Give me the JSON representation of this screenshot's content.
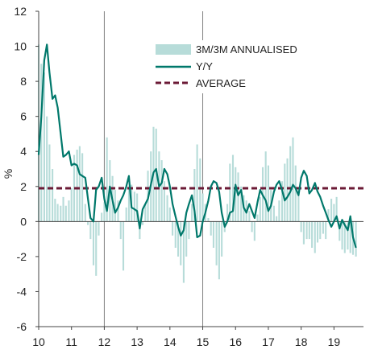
{
  "chart_data": {
    "type": "bar",
    "xlabel": "",
    "ylabel": "%",
    "xlim": [
      2010.0,
      2019.9
    ],
    "ylim": [
      -6,
      12
    ],
    "y_ticks": [
      -6,
      -4,
      -2,
      0,
      2,
      4,
      6,
      8,
      10,
      12
    ],
    "y_tick_labels": [
      "-6",
      "-4",
      "-2",
      "0",
      "2",
      "4",
      "6",
      "8",
      "10",
      "12"
    ],
    "x_ticks": [
      2010,
      2011,
      2012,
      2013,
      2014,
      2015,
      2016,
      2017,
      2018,
      2019
    ],
    "x_tick_labels": [
      "10",
      "11",
      "12",
      "13",
      "14",
      "15",
      "16",
      "17",
      "18",
      "19"
    ],
    "vertical_separators": [
      2012,
      2015
    ],
    "grid": false,
    "legend_position": "top-right",
    "legend": [
      "3M/3M ANNUALISED",
      "Y/Y",
      "AVERAGE"
    ],
    "colors": {
      "bars": "#b7dcd9",
      "line": "#00786b",
      "average": "#6b1a36",
      "axis": "#444444",
      "separator": "#808080"
    },
    "series": [
      {
        "name": "3M/3M ANNUALISED",
        "type": "bar",
        "x": [
          2010.0,
          2010.08,
          2010.17,
          2010.25,
          2010.33,
          2010.42,
          2010.5,
          2010.58,
          2010.67,
          2010.75,
          2010.83,
          2010.92,
          2011.0,
          2011.08,
          2011.17,
          2011.25,
          2011.33,
          2011.42,
          2011.5,
          2011.58,
          2011.67,
          2011.75,
          2011.83,
          2011.92,
          2012.0,
          2012.08,
          2012.17,
          2012.25,
          2012.33,
          2012.42,
          2012.5,
          2012.58,
          2012.67,
          2012.75,
          2012.83,
          2012.92,
          2013.0,
          2013.08,
          2013.17,
          2013.25,
          2013.33,
          2013.42,
          2013.5,
          2013.58,
          2013.67,
          2013.75,
          2013.83,
          2013.92,
          2014.0,
          2014.08,
          2014.17,
          2014.25,
          2014.33,
          2014.42,
          2014.5,
          2014.58,
          2014.67,
          2014.75,
          2014.83,
          2014.92,
          2015.0,
          2015.08,
          2015.17,
          2015.25,
          2015.33,
          2015.42,
          2015.5,
          2015.58,
          2015.67,
          2015.75,
          2015.83,
          2015.92,
          2016.0,
          2016.08,
          2016.17,
          2016.25,
          2016.33,
          2016.42,
          2016.5,
          2016.58,
          2016.67,
          2016.75,
          2016.83,
          2016.92,
          2017.0,
          2017.08,
          2017.17,
          2017.25,
          2017.33,
          2017.42,
          2017.5,
          2017.58,
          2017.67,
          2017.75,
          2017.83,
          2017.92,
          2018.0,
          2018.08,
          2018.17,
          2018.25,
          2018.33,
          2018.42,
          2018.5,
          2018.58,
          2018.67,
          2018.75,
          2018.83,
          2018.92,
          2019.0,
          2019.08,
          2019.17,
          2019.25,
          2019.33,
          2019.42,
          2019.5,
          2019.58,
          2019.67
        ],
        "values": [
          10.1,
          9.0,
          8.5,
          6.0,
          4.4,
          3.0,
          1.3,
          1.0,
          0.9,
          1.4,
          0.9,
          1.2,
          1.9,
          3.8,
          4.1,
          4.3,
          3.9,
          1.0,
          -0.2,
          -1.0,
          -2.5,
          -3.1,
          -0.8,
          0.5,
          1.1,
          4.8,
          3.5,
          2.6,
          1.8,
          1.2,
          -1.0,
          -2.8,
          0.8,
          2.0,
          2.1,
          1.7,
          1.6,
          -1.0,
          -0.2,
          1.0,
          2.9,
          4.0,
          5.4,
          5.3,
          4.0,
          3.5,
          2.3,
          1.5,
          0.8,
          -0.8,
          -1.5,
          -2.0,
          -2.5,
          -3.5,
          -2.0,
          -1.0,
          1.0,
          3.0,
          4.4,
          3.6,
          1.6,
          1.0,
          0.2,
          -0.8,
          -1.5,
          -2.5,
          -3.3,
          -2.0,
          -0.6,
          1.0,
          3.3,
          3.8,
          3.1,
          2.8,
          2.0,
          1.5,
          1.2,
          0.6,
          -0.6,
          -1.1,
          0.4,
          1.4,
          3.1,
          4.0,
          3.2,
          1.8,
          0.9,
          0.3,
          1.2,
          2.3,
          3.3,
          3.6,
          4.3,
          4.8,
          3.2,
          1.8,
          -0.6,
          -1.3,
          -1.0,
          -1.0,
          -1.5,
          -1.8,
          -1.2,
          -1.0,
          -0.7,
          -1.0,
          0.7,
          1.3,
          1.0,
          1.4,
          -1.1,
          -1.6,
          -1.8,
          -1.6,
          -1.8,
          -1.9,
          -2.0
        ]
      },
      {
        "name": "Y/Y",
        "type": "line",
        "x": [
          2010.0,
          2010.08,
          2010.17,
          2010.25,
          2010.33,
          2010.42,
          2010.5,
          2010.58,
          2010.67,
          2010.75,
          2010.83,
          2010.92,
          2011.0,
          2011.08,
          2011.17,
          2011.25,
          2011.33,
          2011.42,
          2011.5,
          2011.58,
          2011.67,
          2011.75,
          2011.83,
          2011.92,
          2012.0,
          2012.08,
          2012.17,
          2012.25,
          2012.33,
          2012.42,
          2012.5,
          2012.58,
          2012.67,
          2012.75,
          2012.83,
          2012.92,
          2013.0,
          2013.08,
          2013.17,
          2013.25,
          2013.33,
          2013.42,
          2013.5,
          2013.58,
          2013.67,
          2013.75,
          2013.83,
          2013.92,
          2014.0,
          2014.08,
          2014.17,
          2014.25,
          2014.33,
          2014.42,
          2014.5,
          2014.58,
          2014.67,
          2014.75,
          2014.83,
          2014.92,
          2015.0,
          2015.08,
          2015.17,
          2015.25,
          2015.33,
          2015.42,
          2015.5,
          2015.58,
          2015.67,
          2015.75,
          2015.83,
          2015.92,
          2016.0,
          2016.08,
          2016.17,
          2016.25,
          2016.33,
          2016.42,
          2016.5,
          2016.58,
          2016.67,
          2016.75,
          2016.83,
          2016.92,
          2017.0,
          2017.08,
          2017.17,
          2017.25,
          2017.33,
          2017.42,
          2017.5,
          2017.58,
          2017.67,
          2017.75,
          2017.83,
          2017.92,
          2018.0,
          2018.08,
          2018.17,
          2018.25,
          2018.33,
          2018.42,
          2018.5,
          2018.58,
          2018.67,
          2018.75,
          2018.83,
          2018.92,
          2019.0,
          2019.08,
          2019.17,
          2019.25,
          2019.33,
          2019.42,
          2019.5,
          2019.58,
          2019.67
        ],
        "values": [
          3.8,
          6.0,
          9.2,
          10.1,
          8.5,
          7.0,
          7.2,
          6.5,
          5.0,
          3.7,
          3.8,
          4.0,
          3.2,
          3.3,
          3.2,
          2.7,
          2.6,
          2.5,
          1.3,
          0.2,
          0.0,
          1.8,
          2.0,
          2.5,
          1.3,
          0.6,
          2.0,
          1.2,
          0.5,
          0.8,
          1.2,
          1.5,
          2.0,
          2.6,
          0.8,
          0.7,
          0.6,
          -0.4,
          0.7,
          1.0,
          1.3,
          2.1,
          2.8,
          3.0,
          2.0,
          2.2,
          3.0,
          2.7,
          2.0,
          1.0,
          0.3,
          -0.3,
          -0.8,
          -0.5,
          0.5,
          1.0,
          1.5,
          0.6,
          -0.9,
          -0.8,
          0.0,
          0.5,
          1.2,
          2.0,
          2.3,
          2.2,
          1.7,
          0.5,
          -0.3,
          0.0,
          0.5,
          0.6,
          2.1,
          1.5,
          1.8,
          0.8,
          0.5,
          1.0,
          0.6,
          0.2,
          1.1,
          1.8,
          1.5,
          1.2,
          0.6,
          0.9,
          1.7,
          2.1,
          2.3,
          1.8,
          1.2,
          1.4,
          1.7,
          2.1,
          1.9,
          1.5,
          2.5,
          2.9,
          2.6,
          1.6,
          1.8,
          2.2,
          1.7,
          1.4,
          0.9,
          0.5,
          0.1,
          -0.3,
          0.0,
          0.3,
          -0.4,
          0.1,
          -0.2,
          -0.5,
          0.3,
          -0.9,
          -1.5
        ]
      },
      {
        "name": "AVERAGE",
        "type": "line",
        "x": [
          2010.0,
          2019.9
        ],
        "values": [
          1.9,
          1.9
        ]
      }
    ]
  }
}
